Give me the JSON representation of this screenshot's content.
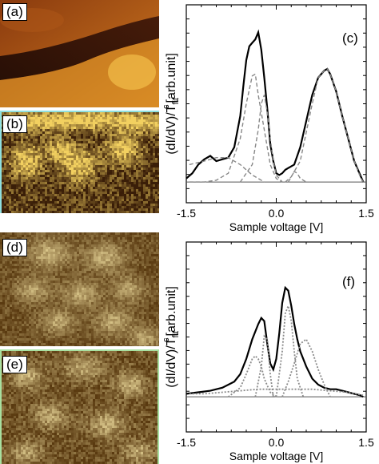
{
  "panel_labels": {
    "a": "(a)",
    "b": "(b)",
    "c": "(c)",
    "d": "(d)",
    "e": "(e)",
    "f": "(f)"
  },
  "colors": {
    "afm_dark": "#2a1208",
    "afm_mid": "#b8601a",
    "afm_bright": "#f4c040",
    "map_dark": "#3a1e08",
    "map_bright": "#f2d060",
    "dos_dark": "#5a3a10",
    "dos_bright": "#ead89a",
    "frame_cyan": "#8fe0e0",
    "frame_green": "#a8e0a0",
    "total_curve": "#000000",
    "fit_dashed": "#888888",
    "fit_dotted": "#8a8a8a"
  },
  "chart_data": [
    {
      "id": "c",
      "type": "line",
      "title": "",
      "xlabel": "Sample voltage [V]",
      "ylabel": "(dI/dV)/T",
      "ylabel_sub": "fit",
      "ylabel_sup": "c",
      "ylabel_tail": "[arb.unit]",
      "xlim": [
        -1.5,
        1.5
      ],
      "ylim": [
        0,
        1.0
      ],
      "xticks": [
        -1.5,
        0.0,
        1.5
      ],
      "xtick_labels": [
        "-1.5",
        "0.0",
        "1.5"
      ],
      "series": [
        {
          "style": "solid",
          "x": [
            -1.5,
            -1.4,
            -1.3,
            -1.2,
            -1.1,
            -1.0,
            -0.9,
            -0.8,
            -0.7,
            -0.6,
            -0.55,
            -0.5,
            -0.45,
            -0.4,
            -0.35,
            -0.3,
            -0.25,
            -0.2,
            -0.15,
            -0.1,
            -0.05,
            0.0,
            0.05,
            0.1,
            0.15,
            0.2,
            0.3,
            0.4,
            0.5,
            0.6,
            0.7,
            0.8,
            0.85,
            0.9,
            1.0,
            1.1,
            1.2,
            1.3,
            1.4,
            1.45
          ],
          "y": [
            0.02,
            0.05,
            0.1,
            0.13,
            0.15,
            0.12,
            0.13,
            0.14,
            0.2,
            0.38,
            0.55,
            0.7,
            0.78,
            0.8,
            0.82,
            0.86,
            0.76,
            0.6,
            0.42,
            0.22,
            0.12,
            0.05,
            0.04,
            0.05,
            0.07,
            0.08,
            0.1,
            0.2,
            0.35,
            0.5,
            0.6,
            0.64,
            0.65,
            0.62,
            0.52,
            0.38,
            0.25,
            0.12,
            0.04,
            0.0
          ]
        },
        {
          "style": "dashed",
          "x": [
            -1.45,
            -1.2,
            -1.0,
            -0.8,
            -0.6,
            -0.5,
            -0.4,
            -0.35,
            -0.3,
            -0.2,
            -0.1,
            0.0,
            0.1
          ],
          "y": [
            0.0,
            0.0,
            0.01,
            0.05,
            0.25,
            0.45,
            0.61,
            0.62,
            0.5,
            0.3,
            0.1,
            0.02,
            0.0
          ]
        },
        {
          "style": "dashed",
          "x": [
            -0.6,
            -0.4,
            -0.3,
            -0.25,
            -0.2,
            -0.15,
            -0.1,
            -0.05,
            0.0,
            0.1
          ],
          "y": [
            0.0,
            0.1,
            0.3,
            0.45,
            0.5,
            0.4,
            0.25,
            0.12,
            0.04,
            0.0
          ]
        },
        {
          "style": "dashed",
          "x": [
            -1.45,
            -1.2,
            -1.0,
            -0.8,
            -0.6,
            -0.4,
            -0.2
          ],
          "y": [
            0.1,
            0.12,
            0.14,
            0.14,
            0.1,
            0.04,
            0.0
          ]
        },
        {
          "style": "dashed",
          "x": [
            0.15,
            0.25,
            0.3,
            0.35,
            0.4,
            0.5
          ],
          "y": [
            0.0,
            0.03,
            0.06,
            0.05,
            0.02,
            0.0
          ]
        },
        {
          "style": "dashed",
          "x": [
            0.2,
            0.4,
            0.6,
            0.7,
            0.8,
            0.85,
            0.9,
            1.0,
            1.1,
            1.2,
            1.3,
            1.4,
            1.45
          ],
          "y": [
            0.0,
            0.12,
            0.45,
            0.6,
            0.64,
            0.65,
            0.62,
            0.52,
            0.38,
            0.25,
            0.12,
            0.03,
            0.0
          ]
        }
      ]
    },
    {
      "id": "f",
      "type": "line",
      "title": "",
      "xlabel": "Sample voltage [V]",
      "ylabel": "(dI/dV)/T",
      "ylabel_sub": "fit",
      "ylabel_sup": "c",
      "ylabel_tail": "[arb.unit]",
      "xlim": [
        -1.5,
        1.5
      ],
      "ylim": [
        0,
        1.0
      ],
      "xticks": [
        -1.5,
        0.0,
        1.5
      ],
      "xtick_labels": [
        "-1.5",
        "0.0",
        "1.5"
      ],
      "series": [
        {
          "style": "solid",
          "x": [
            -1.5,
            -1.3,
            -1.1,
            -0.9,
            -0.7,
            -0.6,
            -0.5,
            -0.4,
            -0.3,
            -0.25,
            -0.2,
            -0.15,
            -0.1,
            -0.05,
            0.0,
            0.05,
            0.1,
            0.15,
            0.2,
            0.25,
            0.3,
            0.35,
            0.4,
            0.5,
            0.6,
            0.7,
            0.8,
            0.9,
            1.0,
            1.1,
            1.2,
            1.3,
            1.4,
            1.45
          ],
          "y": [
            0.02,
            0.03,
            0.04,
            0.06,
            0.1,
            0.15,
            0.25,
            0.38,
            0.48,
            0.52,
            0.5,
            0.35,
            0.22,
            0.18,
            0.25,
            0.42,
            0.62,
            0.72,
            0.7,
            0.6,
            0.48,
            0.38,
            0.3,
            0.2,
            0.12,
            0.08,
            0.06,
            0.05,
            0.05,
            0.04,
            0.03,
            0.02,
            0.01,
            0.0
          ]
        },
        {
          "style": "dotted",
          "x": [
            -0.8,
            -0.6,
            -0.5,
            -0.4,
            -0.35,
            -0.3,
            -0.25,
            -0.2,
            -0.1,
            0.0
          ],
          "y": [
            0.0,
            0.06,
            0.15,
            0.25,
            0.27,
            0.25,
            0.2,
            0.12,
            0.03,
            0.0
          ]
        },
        {
          "style": "dotted",
          "x": [
            -0.35,
            -0.25,
            -0.2,
            -0.15,
            -0.1,
            -0.05
          ],
          "y": [
            0.0,
            0.2,
            0.4,
            0.38,
            0.15,
            0.0
          ]
        },
        {
          "style": "dotted",
          "x": [
            0.0,
            0.1,
            0.15,
            0.2,
            0.25,
            0.3,
            0.35,
            0.45
          ],
          "y": [
            0.0,
            0.3,
            0.55,
            0.6,
            0.5,
            0.3,
            0.12,
            0.0
          ]
        },
        {
          "style": "dotted",
          "x": [
            0.1,
            0.2,
            0.3,
            0.4,
            0.5,
            0.6,
            0.7,
            0.8,
            0.9
          ],
          "y": [
            0.0,
            0.1,
            0.22,
            0.35,
            0.38,
            0.3,
            0.18,
            0.08,
            0.0
          ]
        },
        {
          "style": "dotted",
          "x": [
            -1.45,
            -1.2,
            -0.9,
            -0.6,
            -0.3,
            0.0,
            0.3,
            0.6,
            0.9,
            1.2,
            1.45
          ],
          "y": [
            0.02,
            0.02,
            0.03,
            0.04,
            0.05,
            0.05,
            0.05,
            0.05,
            0.04,
            0.03,
            0.01
          ]
        }
      ]
    }
  ]
}
